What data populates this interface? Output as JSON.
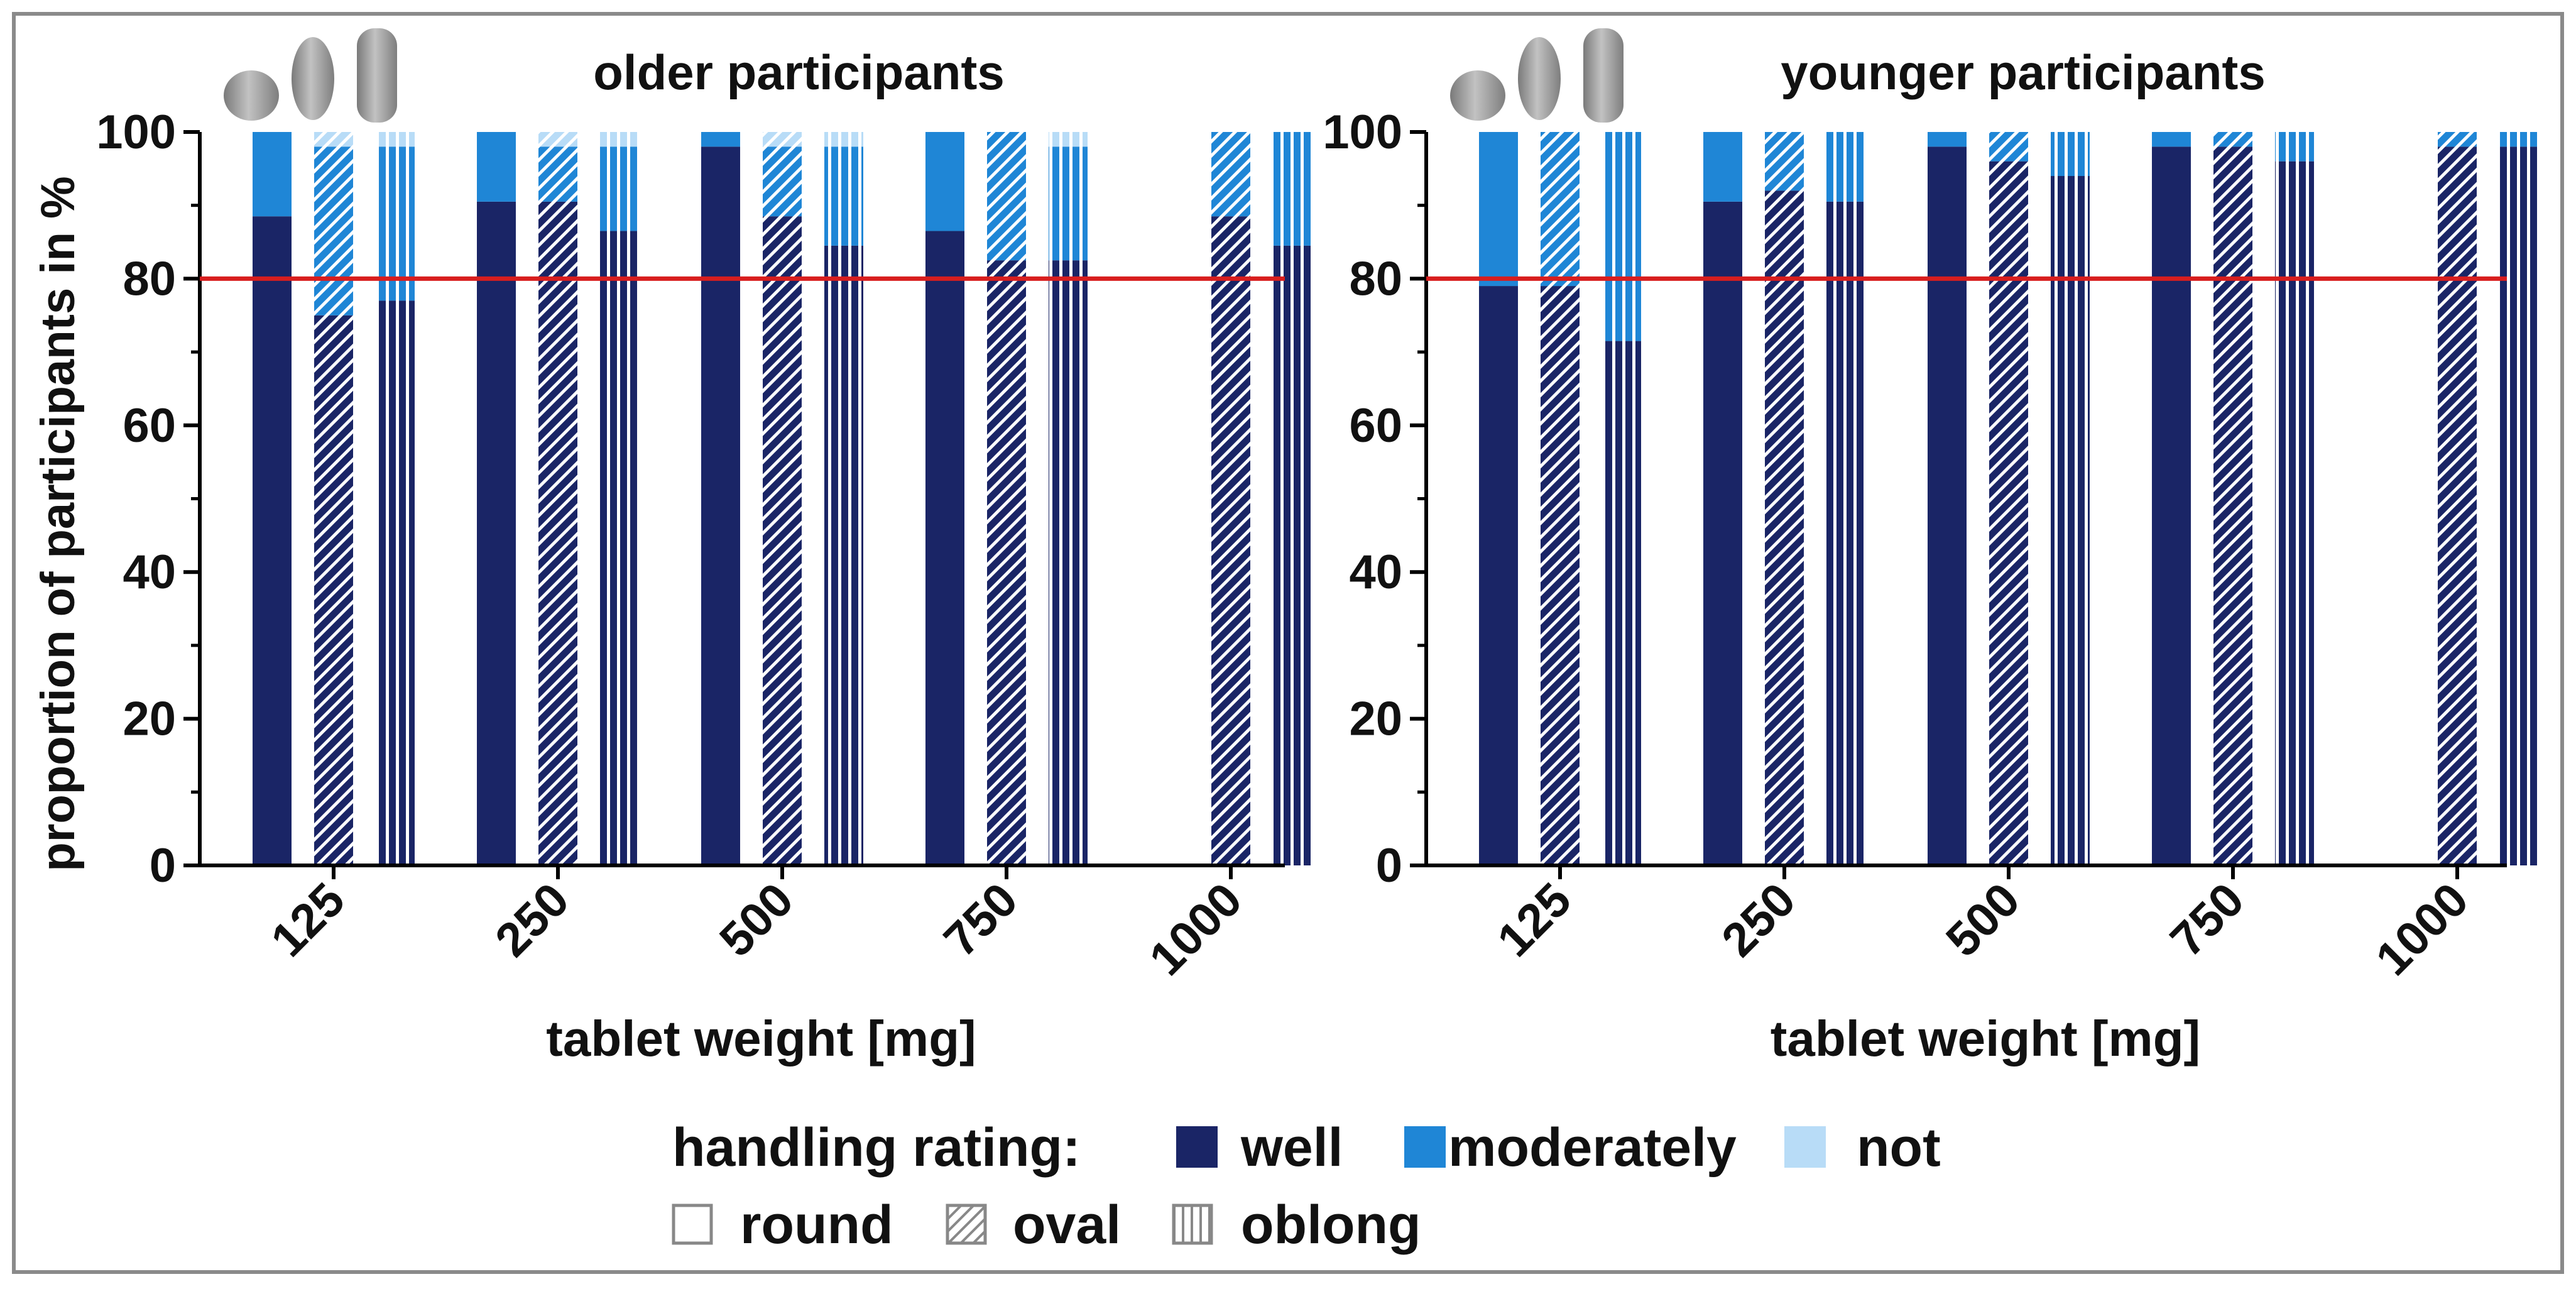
{
  "chart_data": [
    {
      "type": "bar",
      "stacked": true,
      "title": "older participants",
      "xlabel": "tablet weight [mg]",
      "ylabel": "proportion of participants in %",
      "ylim": [
        0,
        100
      ],
      "yticks": [
        0,
        20,
        40,
        60,
        80,
        100
      ],
      "reference_line": 80,
      "categories": [
        "125",
        "250",
        "500",
        "750",
        "1000"
      ],
      "shapes": [
        "round",
        "oval",
        "oblong"
      ],
      "bars": [
        {
          "category": "125",
          "shape": "round",
          "well": 88.5,
          "moderately": 11.5,
          "not": 0
        },
        {
          "category": "125",
          "shape": "oval",
          "well": 75,
          "moderately": 23,
          "not": 2
        },
        {
          "category": "125",
          "shape": "oblong",
          "well": 77,
          "moderately": 21,
          "not": 2
        },
        {
          "category": "250",
          "shape": "round",
          "well": 90.5,
          "moderately": 9.5,
          "not": 0
        },
        {
          "category": "250",
          "shape": "oval",
          "well": 90.5,
          "moderately": 7.5,
          "not": 2
        },
        {
          "category": "250",
          "shape": "oblong",
          "well": 86.5,
          "moderately": 11.5,
          "not": 2
        },
        {
          "category": "500",
          "shape": "round",
          "well": 98,
          "moderately": 2,
          "not": 0
        },
        {
          "category": "500",
          "shape": "oval",
          "well": 88.5,
          "moderately": 9.5,
          "not": 2
        },
        {
          "category": "500",
          "shape": "oblong",
          "well": 84.5,
          "moderately": 13.5,
          "not": 2
        },
        {
          "category": "750",
          "shape": "round",
          "well": 86.5,
          "moderately": 13.5,
          "not": 0
        },
        {
          "category": "750",
          "shape": "oval",
          "well": 82.5,
          "moderately": 17.5,
          "not": 0
        },
        {
          "category": "750",
          "shape": "oblong",
          "well": 82.5,
          "moderately": 15.5,
          "not": 2
        },
        {
          "category": "1000",
          "shape": "oval",
          "well": 88.5,
          "moderately": 11.5,
          "not": 0
        },
        {
          "category": "1000",
          "shape": "oblong",
          "well": 84.5,
          "moderately": 15.5,
          "not": 0
        }
      ]
    },
    {
      "type": "bar",
      "stacked": true,
      "title": "younger participants",
      "xlabel": "tablet weight [mg]",
      "ylabel": "",
      "ylim": [
        0,
        100
      ],
      "yticks": [
        0,
        20,
        40,
        60,
        80,
        100
      ],
      "reference_line": 80,
      "categories": [
        "125",
        "250",
        "500",
        "750",
        "1000"
      ],
      "shapes": [
        "round",
        "oval",
        "oblong"
      ],
      "bars": [
        {
          "category": "125",
          "shape": "round",
          "well": 79,
          "moderately": 21,
          "not": 0
        },
        {
          "category": "125",
          "shape": "oval",
          "well": 79,
          "moderately": 21,
          "not": 0
        },
        {
          "category": "125",
          "shape": "oblong",
          "well": 71.5,
          "moderately": 28.5,
          "not": 0
        },
        {
          "category": "250",
          "shape": "round",
          "well": 90.5,
          "moderately": 9.5,
          "not": 0
        },
        {
          "category": "250",
          "shape": "oval",
          "well": 92,
          "moderately": 8,
          "not": 0
        },
        {
          "category": "250",
          "shape": "oblong",
          "well": 90.5,
          "moderately": 9.5,
          "not": 0
        },
        {
          "category": "500",
          "shape": "round",
          "well": 98,
          "moderately": 2,
          "not": 0
        },
        {
          "category": "500",
          "shape": "oval",
          "well": 96,
          "moderately": 4,
          "not": 0
        },
        {
          "category": "500",
          "shape": "oblong",
          "well": 94,
          "moderately": 6,
          "not": 0
        },
        {
          "category": "750",
          "shape": "round",
          "well": 98,
          "moderately": 2,
          "not": 0
        },
        {
          "category": "750",
          "shape": "oval",
          "well": 98,
          "moderately": 2,
          "not": 0
        },
        {
          "category": "750",
          "shape": "oblong",
          "well": 96,
          "moderately": 4,
          "not": 0
        },
        {
          "category": "1000",
          "shape": "oval",
          "well": 98,
          "moderately": 2,
          "not": 0
        },
        {
          "category": "1000",
          "shape": "oblong",
          "well": 98,
          "moderately": 2,
          "not": 0
        }
      ]
    }
  ],
  "legend": {
    "rating_title": "handling rating:",
    "ratings": [
      {
        "key": "well",
        "label": "well",
        "color": "#1a2566"
      },
      {
        "key": "moderately",
        "label": "moderately",
        "color": "#1f86d6"
      },
      {
        "key": "not",
        "label": "not",
        "color": "#b8dcf7"
      }
    ],
    "shapes": [
      {
        "key": "round",
        "label": "round"
      },
      {
        "key": "oval",
        "label": "oval"
      },
      {
        "key": "oblong",
        "label": "oblong"
      }
    ]
  },
  "colors": {
    "well": "#1a2566",
    "moderately": "#1f86d6",
    "not": "#b8dcf7",
    "reference_line": "#d81e1e",
    "axis": "#000000",
    "frame": "#8a8a8a",
    "tablet_icon": "#9a9a9a"
  }
}
